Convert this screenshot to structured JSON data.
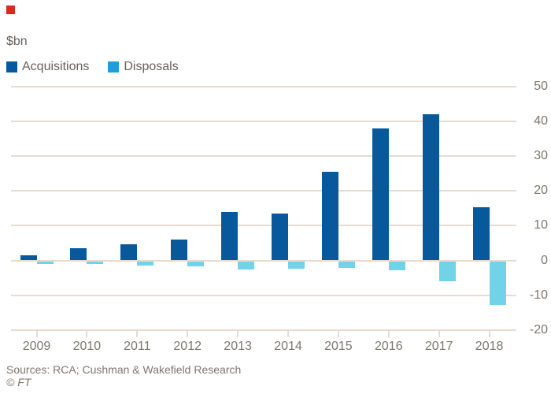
{
  "marker_color": "#dc281e",
  "header": {
    "unit_label": "$bn"
  },
  "footer": {
    "sources": "Sources: RCA; Cushman & Wakefield Research",
    "copyright": "© FT"
  },
  "chart_data": {
    "type": "bar",
    "title": "",
    "unit_label": "$bn",
    "categories": [
      "2009",
      "2010",
      "2011",
      "2012",
      "2013",
      "2014",
      "2015",
      "2016",
      "2017",
      "2018"
    ],
    "series": [
      {
        "name": "Acquisitions",
        "legend_color": "#07599c",
        "color": "#07599c",
        "values": [
          1.5,
          3.6,
          4.8,
          6.1,
          14.0,
          13.6,
          25.6,
          38.1,
          42.2,
          15.5
        ]
      },
      {
        "name": "Disposals",
        "legend_color": "#1b9ed9",
        "color": "#70d3e8",
        "values": [
          -0.8,
          -1.0,
          -1.3,
          -1.6,
          -2.4,
          -2.3,
          -2.0,
          -2.7,
          -6.0,
          -12.7
        ]
      }
    ],
    "yticks": [
      50,
      40,
      30,
      20,
      10,
      0,
      -10,
      -20
    ],
    "ylim": [
      -20,
      50
    ],
    "grid": true,
    "grid_color": "#e8dbce",
    "axis_text_color": "#7d766e",
    "legend_position": "top-left"
  }
}
